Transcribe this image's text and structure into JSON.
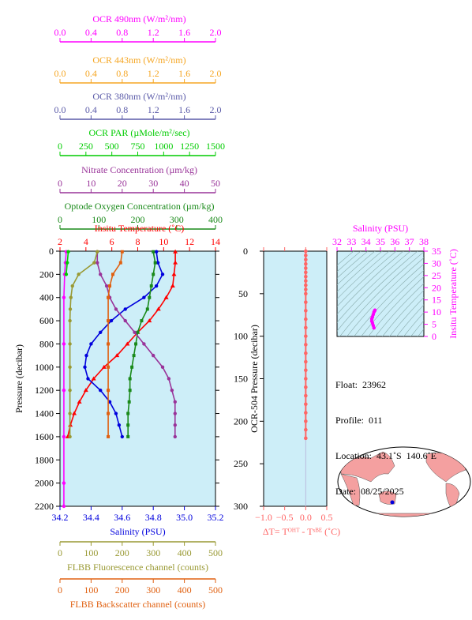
{
  "info": {
    "float": "Float:  23962",
    "profile": "Profile:  011",
    "location": "Location:  43.1˚S  140.6˚E",
    "date": "Date:  08/25/2025"
  },
  "chart_data": [
    {
      "type": "line",
      "name": "main-profile-panel",
      "ylabel": "Pressure (decibar)",
      "ylim": [
        2200,
        0
      ],
      "yticks": [
        0,
        200,
        400,
        600,
        800,
        1000,
        1200,
        1400,
        1600,
        1800,
        2000,
        2200
      ],
      "background": "#cdeef8",
      "axes": [
        {
          "key": "ocr490",
          "label": "OCR 490nm (W/m²/nm)",
          "color": "#ff00ff",
          "range": [
            0,
            2.0
          ],
          "ticks": [
            "0.0",
            "0.4",
            "0.8",
            "1.2",
            "1.6",
            "2.0"
          ],
          "position": "top"
        },
        {
          "key": "ocr443",
          "label": "OCR 443nm (W/m²/nm)",
          "color": "#f5a623",
          "range": [
            0,
            2.0
          ],
          "ticks": [
            "0.0",
            "0.4",
            "0.8",
            "1.2",
            "1.6",
            "2.0"
          ],
          "position": "top"
        },
        {
          "key": "ocr380",
          "label": "OCR 380nm (W/m²/nm)",
          "color": "#5a5aa8",
          "range": [
            0,
            2.0
          ],
          "ticks": [
            "0.0",
            "0.4",
            "0.8",
            "1.2",
            "1.6",
            "2.0"
          ],
          "position": "top"
        },
        {
          "key": "par",
          "label": "OCR PAR (µMole/m²/sec)",
          "color": "#00cc00",
          "range": [
            0,
            1500
          ],
          "ticks": [
            "0",
            "250",
            "500",
            "750",
            "1000",
            "1250",
            "1500"
          ],
          "position": "top"
        },
        {
          "key": "nitrate",
          "label": "Nitrate Concentration (µm/kg)",
          "color": "#993399",
          "range": [
            0,
            50
          ],
          "ticks": [
            "0",
            "10",
            "20",
            "30",
            "40",
            "50"
          ],
          "position": "top"
        },
        {
          "key": "oxygen",
          "label": "Optode Oxygen Concentration (µm/kg)",
          "color": "#1a8a1a",
          "range": [
            0,
            400
          ],
          "ticks": [
            "0",
            "100",
            "200",
            "300",
            "400"
          ],
          "position": "top"
        },
        {
          "key": "temp",
          "label": "Insitu Temperature (˚C)",
          "color": "#ff0000",
          "range": [
            2,
            14
          ],
          "ticks": [
            "2",
            "4",
            "6",
            "8",
            "10",
            "12",
            "14"
          ],
          "position": "top"
        },
        {
          "key": "sal",
          "label": "Salinity (PSU)",
          "color": "#0000dd",
          "range": [
            34.2,
            35.2
          ],
          "ticks": [
            "34.2",
            "34.4",
            "34.6",
            "34.8",
            "35.0",
            "35.2"
          ],
          "position": "bottom"
        },
        {
          "key": "fluor",
          "label": "FLBB Fluorescence channel (counts)",
          "color": "#999933",
          "range": [
            0,
            500
          ],
          "ticks": [
            "0",
            "100",
            "200",
            "300",
            "400",
            "500"
          ],
          "position": "bottom"
        },
        {
          "key": "bback",
          "label": "FLBB Backscatter channel (counts)",
          "color": "#e06010",
          "range": [
            0,
            500
          ],
          "ticks": [
            "0",
            "100",
            "200",
            "300",
            "400",
            "500"
          ],
          "position": "bottom"
        }
      ],
      "series": [
        {
          "axis": "temp",
          "marker": "triangle",
          "points": [
            [
              10.9,
              5
            ],
            [
              10.9,
              100
            ],
            [
              10.8,
              200
            ],
            [
              10.7,
              300
            ],
            [
              10.2,
              400
            ],
            [
              9.6,
              500
            ],
            [
              8.9,
              600
            ],
            [
              8.0,
              700
            ],
            [
              7.2,
              800
            ],
            [
              6.4,
              900
            ],
            [
              5.4,
              1000
            ],
            [
              4.6,
              1100
            ],
            [
              4.0,
              1200
            ],
            [
              3.5,
              1300
            ],
            [
              3.1,
              1400
            ],
            [
              2.8,
              1500
            ],
            [
              2.6,
              1600
            ]
          ]
        },
        {
          "axis": "sal",
          "marker": "circle",
          "points": [
            [
              34.82,
              5
            ],
            [
              34.83,
              100
            ],
            [
              34.86,
              200
            ],
            [
              34.82,
              300
            ],
            [
              34.74,
              400
            ],
            [
              34.62,
              500
            ],
            [
              34.53,
              600
            ],
            [
              34.46,
              700
            ],
            [
              34.4,
              800
            ],
            [
              34.37,
              900
            ],
            [
              34.36,
              1000
            ],
            [
              34.38,
              1100
            ],
            [
              34.46,
              1200
            ],
            [
              34.52,
              1300
            ],
            [
              34.56,
              1400
            ],
            [
              34.58,
              1500
            ],
            [
              34.6,
              1600
            ]
          ]
        },
        {
          "axis": "oxygen",
          "marker": "square",
          "points": [
            [
              240,
              5
            ],
            [
              245,
              100
            ],
            [
              240,
              200
            ],
            [
              235,
              300
            ],
            [
              230,
              400
            ],
            [
              225,
              500
            ],
            [
              210,
              600
            ],
            [
              200,
              700
            ],
            [
              195,
              800
            ],
            [
              190,
              900
            ],
            [
              185,
              1000
            ],
            [
              180,
              1100
            ],
            [
              180,
              1200
            ],
            [
              178,
              1300
            ],
            [
              175,
              1400
            ],
            [
              175,
              1500
            ],
            [
              175,
              1600
            ]
          ]
        },
        {
          "axis": "nitrate",
          "marker": "circle",
          "points": [
            [
              12,
              5
            ],
            [
              12,
              100
            ],
            [
              13,
              200
            ],
            [
              15,
              300
            ],
            [
              16,
              400
            ],
            [
              18,
              500
            ],
            [
              21,
              600
            ],
            [
              24,
              700
            ],
            [
              27,
              800
            ],
            [
              30,
              900
            ],
            [
              33,
              1000
            ],
            [
              35,
              1100
            ],
            [
              36,
              1200
            ],
            [
              37,
              1300
            ],
            [
              37,
              1400
            ],
            [
              37,
              1500
            ],
            [
              37,
              1600
            ]
          ]
        },
        {
          "axis": "fluor",
          "marker": "circle",
          "points": [
            [
              120,
              5
            ],
            [
              110,
              100
            ],
            [
              60,
              200
            ],
            [
              40,
              300
            ],
            [
              35,
              400
            ],
            [
              33,
              500
            ],
            [
              32,
              600
            ],
            [
              32,
              800
            ],
            [
              32,
              1000
            ],
            [
              32,
              1200
            ],
            [
              32,
              1400
            ],
            [
              32,
              1600
            ]
          ]
        },
        {
          "axis": "bback",
          "marker": "square",
          "points": [
            [
              200,
              5
            ],
            [
              195,
              100
            ],
            [
              170,
              200
            ],
            [
              160,
              300
            ],
            [
              155,
              400
            ],
            [
              155,
              600
            ],
            [
              155,
              800
            ],
            [
              155,
              1000
            ],
            [
              155,
              1200
            ],
            [
              155,
              1400
            ],
            [
              155,
              1600
            ]
          ]
        },
        {
          "axis": "ocr490",
          "marker": "circle",
          "points": [
            [
              0.08,
              5
            ],
            [
              0.07,
              100
            ],
            [
              0.06,
              200
            ],
            [
              0.05,
              400
            ],
            [
              0.05,
              800
            ],
            [
              0.05,
              1200
            ],
            [
              0.05,
              1600
            ],
            [
              0.05,
              2000
            ],
            [
              0.05,
              2200
            ]
          ]
        },
        {
          "axis": "par",
          "marker": "circle",
          "points": [
            [
              80,
              5
            ],
            [
              70,
              100
            ],
            [
              60,
              200
            ]
          ]
        }
      ]
    },
    {
      "type": "scatter",
      "name": "delta-t-panel",
      "ylabel": "OCR-504 Pressure (decibar)",
      "ylim": [
        300,
        0
      ],
      "yticks": [
        "0",
        "50",
        "100",
        "150",
        "200",
        "250",
        "300"
      ],
      "xlim": [
        -1.0,
        0.5
      ],
      "xticks": [
        "−1.0",
        "−0.5",
        "0.0",
        "0.5"
      ],
      "xlabel": "ΔT= Tᴼᴴᵀ - Tˢᴮᴱ (˚C)",
      "color": "#ff6666",
      "background": "#cdeef8",
      "points": [
        [
          0,
          0
        ],
        [
          0,
          5
        ],
        [
          0,
          10
        ],
        [
          0,
          15
        ],
        [
          0,
          20
        ],
        [
          0,
          25
        ],
        [
          0,
          30
        ],
        [
          0,
          35
        ],
        [
          0,
          40
        ],
        [
          0,
          45
        ],
        [
          0,
          50
        ],
        [
          0,
          60
        ],
        [
          0,
          70
        ],
        [
          0,
          80
        ],
        [
          0,
          90
        ],
        [
          0,
          100
        ],
        [
          0,
          110
        ],
        [
          0,
          120
        ],
        [
          0,
          130
        ],
        [
          0,
          140
        ],
        [
          0,
          150
        ],
        [
          0,
          160
        ],
        [
          0,
          170
        ],
        [
          0,
          180
        ],
        [
          0,
          190
        ],
        [
          0,
          200
        ],
        [
          0,
          210
        ],
        [
          0,
          220
        ]
      ]
    },
    {
      "type": "scatter",
      "name": "ts-diagram",
      "xlabel": "Salinity (PSU)",
      "ylabel": "Insitu Temperature (˚C)",
      "xlim": [
        32,
        38
      ],
      "ylim": [
        0,
        35
      ],
      "xticks": [
        "32",
        "33",
        "34",
        "35",
        "36",
        "37",
        "38"
      ],
      "yticks": [
        "0",
        "5",
        "10",
        "15",
        "20",
        "25",
        "30",
        "35"
      ],
      "color": "#ff00ff",
      "background": "#cdeef8",
      "points": [
        [
          34.55,
          3.5
        ],
        [
          34.5,
          4.5
        ],
        [
          34.45,
          5.5
        ],
        [
          34.4,
          6.3
        ],
        [
          34.4,
          7.2
        ],
        [
          34.45,
          8.0
        ],
        [
          34.5,
          9.0
        ],
        [
          34.55,
          10.0
        ],
        [
          34.6,
          10.5
        ],
        [
          34.62,
          10.8
        ]
      ]
    }
  ]
}
